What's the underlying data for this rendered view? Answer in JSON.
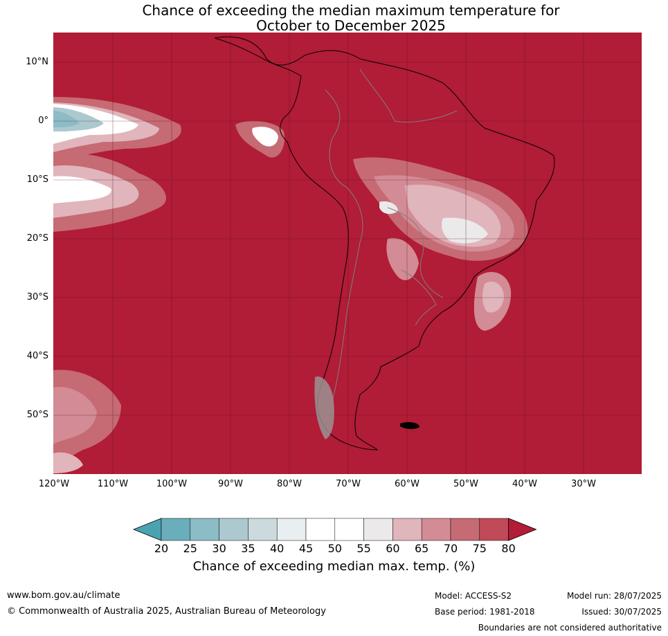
{
  "title": {
    "line1": "Chance of exceeding the median maximum temperature for",
    "line2": "October to December 2025"
  },
  "map": {
    "latitude_labels": [
      "10°N",
      "0°",
      "10°S",
      "20°S",
      "30°S",
      "40°S",
      "50°S"
    ],
    "longitude_labels": [
      "120°W",
      "110°W",
      "100°W",
      "90°W",
      "80°W",
      "70°W",
      "60°W",
      "50°W",
      "40°W",
      "30°W"
    ],
    "background_category_color": "#b11c36",
    "region": "South America and eastern Pacific",
    "gridlines": true
  },
  "legend": {
    "tick_labels": [
      "20",
      "25",
      "30",
      "35",
      "40",
      "45",
      "50",
      "55",
      "60",
      "65",
      "70",
      "75",
      "80"
    ],
    "colors": [
      "#4ba3b1",
      "#6baebb",
      "#8cbcc6",
      "#acc9cf",
      "#ccdadd",
      "#e9eff1",
      "#ffffff",
      "#ffffff",
      "#ebe9ea",
      "#e0b5bb",
      "#d38b95",
      "#c66a74",
      "#c04a58",
      "#b11c36"
    ],
    "title": "Chance of exceeding median max. temp. (%)"
  },
  "footer": {
    "website": "www.bom.gov.au/climate",
    "copyright": "© Commonwealth of Australia 2025, Australian Bureau of Meteorology",
    "model": "Model: ACCESS-S2",
    "base_period": "Base period: 1981-2018",
    "model_run": "Model run: 28/07/2025",
    "issued": "Issued: 30/07/2025",
    "disclaimer": "Boundaries are not considered authoritative"
  }
}
